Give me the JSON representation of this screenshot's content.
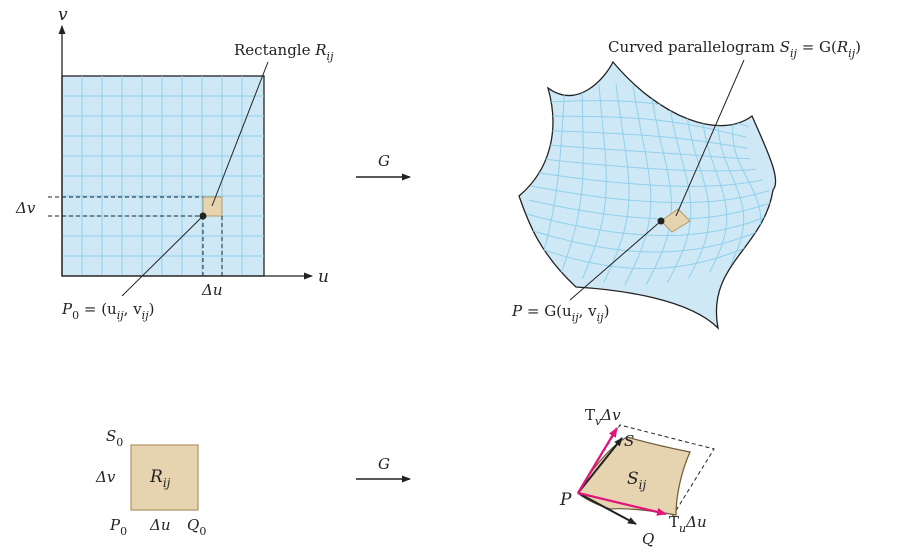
{
  "top_left": {
    "axis_v": "v",
    "axis_u": "u",
    "callout_rect_prefix": "Rectangle ",
    "callout_rect_R": "R",
    "callout_rect_sub": "ij",
    "delta_v": "Δv",
    "delta_u": "Δu",
    "p0_P": "P",
    "p0_sub0": "0",
    "p0_eq": " = (u",
    "p0_ij1": "ij",
    "p0_comma": ", v",
    "p0_ij2": "ij",
    "p0_close": ")"
  },
  "top_arrow": {
    "label": "G"
  },
  "top_right": {
    "callout_prefix": "Curved parallelogram ",
    "S": "S",
    "S_sub": "ij",
    "eq_G": " = G(",
    "R": "R",
    "R_sub": "ij",
    "close": ")",
    "p_P": "P",
    "p_eq": " = G(u",
    "p_ij1": "ij",
    "p_comma": ",  v",
    "p_ij2": "ij",
    "p_close": ")"
  },
  "bottom_left": {
    "S0": "S",
    "S0_sub": "0",
    "delta_v": "Δv",
    "R": "R",
    "R_sub": "ij",
    "P0": "P",
    "P0_sub": "0",
    "delta_u": "Δu",
    "Q0": "Q",
    "Q0_sub": "0"
  },
  "bottom_arrow": {
    "label": "G"
  },
  "bottom_right": {
    "Tv_T": "T",
    "Tv_sub": "v",
    "Tv_rest": "Δv",
    "S": "S",
    "Sij": "S",
    "Sij_sub": "ij",
    "P": "P",
    "Q": "Q",
    "Tu_T": "T",
    "Tu_sub": "u",
    "Tu_rest": "Δu"
  },
  "colors": {
    "grid_fill": "#cfe8f6",
    "grid_line": "#8fd0ec",
    "patch_fill": "#e6d3b0",
    "patch_stroke": "#b59a6a",
    "vector_magenta": "#e0157a",
    "ink": "#222222"
  }
}
